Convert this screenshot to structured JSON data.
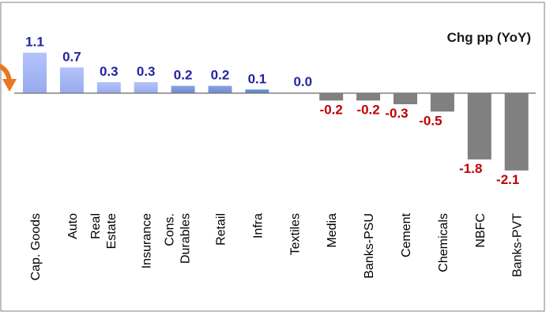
{
  "chart_data": {
    "type": "bar",
    "title": "Chg pp (YoY)",
    "categories": [
      "Cap. Goods",
      "Auto",
      "Real Estate",
      "Insurance",
      "Cons. Durables",
      "Retail",
      "Infra",
      "Textiles",
      "Media",
      "Banks-PSU",
      "Cement",
      "Chemicals",
      "NBFC",
      "Banks-PVT"
    ],
    "values": [
      1.1,
      0.7,
      0.3,
      0.3,
      0.2,
      0.2,
      0.1,
      0.0,
      -0.2,
      -0.2,
      -0.3,
      -0.5,
      -1.8,
      -2.1
    ],
    "value_labels": [
      "1.1",
      "0.7",
      "0.3",
      "0.3",
      "0.2",
      "0.2",
      "0.1",
      "0.0",
      "-0.2",
      "-0.2",
      "-0.3",
      "-0.5",
      "-1.8",
      "-2.1"
    ],
    "ylim": [
      -2.1,
      1.1
    ],
    "grid": false,
    "legend": "none",
    "colors": {
      "positive_light": "#a7b7f4",
      "positive_mid": "#7c95dc",
      "positive_dark": "#6f9bd1",
      "negative_bar": "#808080",
      "positive_label": "#2424a0",
      "negative_label": "#c00000",
      "title": "#1a1a1a",
      "axis": "#808080",
      "arrow": "#e87722",
      "frame": "#7f7f7f"
    }
  }
}
